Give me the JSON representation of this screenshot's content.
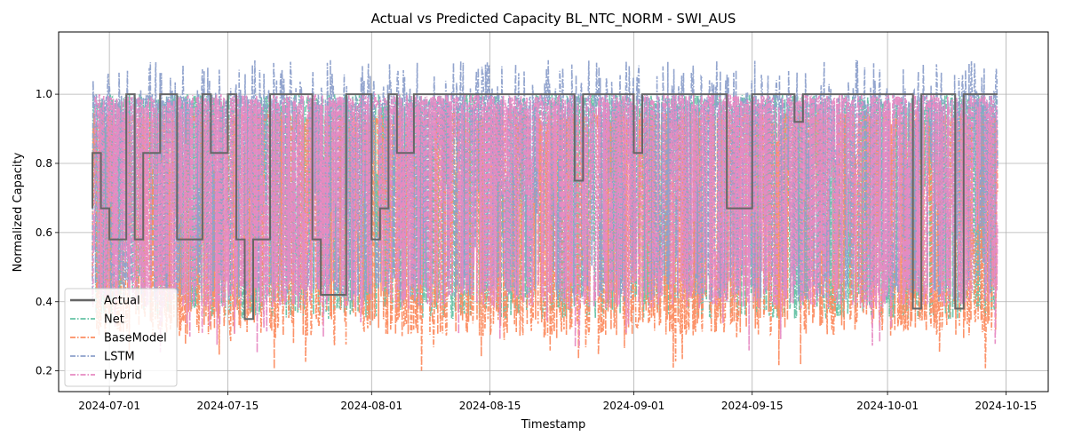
{
  "chart_data": {
    "type": "line",
    "title": "Actual vs Predicted Capacity BL_NTC_NORM - SWI_AUS",
    "xlabel": "Timestamp",
    "ylabel": "Normalized Capacity",
    "xlim": [
      "2024-06-25",
      "2024-10-20"
    ],
    "ylim": [
      0.14,
      1.18
    ],
    "x_ticks": [
      "2024-07-01",
      "2024-07-15",
      "2024-08-01",
      "2024-08-15",
      "2024-09-01",
      "2024-09-15",
      "2024-10-01",
      "2024-10-15"
    ],
    "y_ticks": [
      0.2,
      0.4,
      0.6,
      0.8,
      1.0
    ],
    "y_tick_labels": [
      "0.2",
      "0.4",
      "0.6",
      "0.8",
      "1.0"
    ],
    "grid": true,
    "legend_position": "lower-left",
    "x_start": "2024-06-29",
    "x_end": "2024-10-14",
    "series": [
      {
        "name": "Actual",
        "color": "#666666",
        "style": "solid",
        "steps": [
          [
            "2024-06-29",
            0.67
          ],
          [
            "2024-06-29",
            0.83
          ],
          [
            "2024-06-30",
            0.67
          ],
          [
            "2024-07-01",
            0.58
          ],
          [
            "2024-07-03",
            1.0
          ],
          [
            "2024-07-04",
            0.58
          ],
          [
            "2024-07-05",
            0.83
          ],
          [
            "2024-07-07",
            1.0
          ],
          [
            "2024-07-09",
            0.58
          ],
          [
            "2024-07-12",
            1.0
          ],
          [
            "2024-07-13",
            0.83
          ],
          [
            "2024-07-15",
            1.0
          ],
          [
            "2024-07-16",
            0.58
          ],
          [
            "2024-07-17",
            0.35
          ],
          [
            "2024-07-18",
            0.58
          ],
          [
            "2024-07-20",
            1.0
          ],
          [
            "2024-07-25",
            0.58
          ],
          [
            "2024-07-26",
            0.42
          ],
          [
            "2024-07-29",
            1.0
          ],
          [
            "2024-08-01",
            0.58
          ],
          [
            "2024-08-02",
            0.67
          ],
          [
            "2024-08-03",
            1.0
          ],
          [
            "2024-08-04",
            0.83
          ],
          [
            "2024-08-06",
            1.0
          ],
          [
            "2024-08-25",
            0.75
          ],
          [
            "2024-08-26",
            1.0
          ],
          [
            "2024-09-01",
            0.83
          ],
          [
            "2024-09-02",
            1.0
          ],
          [
            "2024-09-12",
            0.67
          ],
          [
            "2024-09-15",
            1.0
          ],
          [
            "2024-09-20",
            0.92
          ],
          [
            "2024-09-21",
            1.0
          ],
          [
            "2024-10-04",
            0.38
          ],
          [
            "2024-10-05",
            1.0
          ],
          [
            "2024-10-09",
            0.38
          ],
          [
            "2024-10-10",
            1.0
          ],
          [
            "2024-10-14",
            1.0
          ]
        ]
      },
      {
        "name": "Net",
        "color": "#66c2a5",
        "style": "dashdot"
      },
      {
        "name": "BaseModel",
        "color": "#fc8d62",
        "style": "dashdot"
      },
      {
        "name": "LSTM",
        "color": "#8da0cb",
        "style": "dashdot"
      },
      {
        "name": "Hybrid",
        "color": "#e78ac3",
        "style": "dashdot"
      }
    ],
    "prediction_range": {
      "min": 0.19,
      "max": 1.13
    }
  }
}
